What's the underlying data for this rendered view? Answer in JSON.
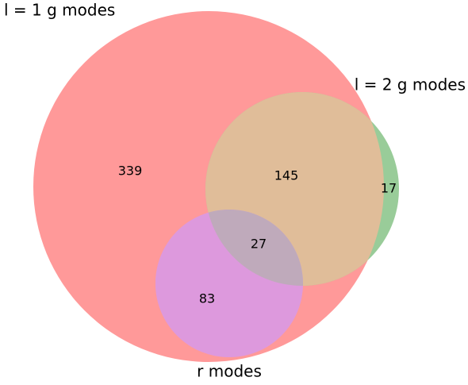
{
  "chart_data": {
    "type": "venn",
    "series": [
      {
        "name": "l = 1 g modes",
        "color": "#ff9999"
      },
      {
        "name": "l = 2 g modes",
        "color": "#99cc99"
      },
      {
        "name": "r modes",
        "color": "#dd99dd"
      }
    ],
    "values": [
      339,
      145,
      17,
      27,
      83
    ]
  }
}
